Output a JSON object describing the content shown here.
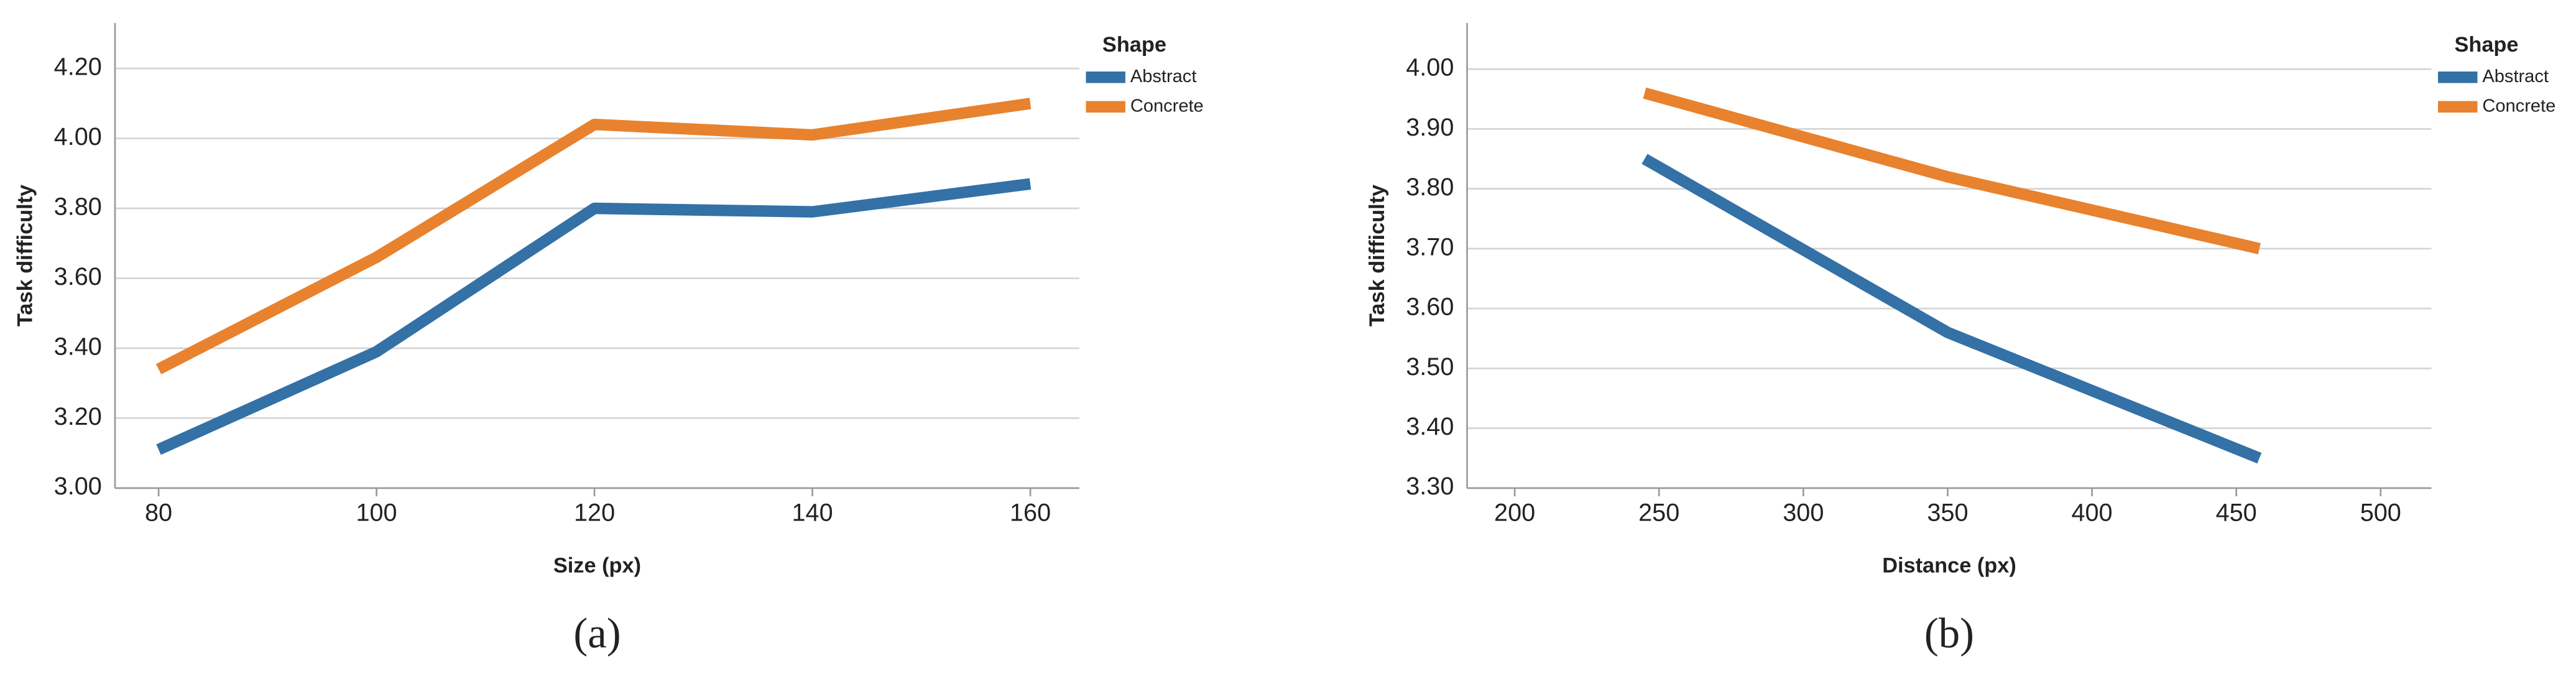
{
  "chart_data": [
    {
      "type": "line",
      "caption": "(a)",
      "xlabel": "Size (px)",
      "ylabel": "Task difficulty",
      "legend_title": "Shape",
      "legend": "right",
      "grid": true,
      "x": [
        80,
        100,
        120,
        140,
        160
      ],
      "xlim": [
        76,
        164.5
      ],
      "xticks": [
        80,
        100,
        120,
        140,
        160
      ],
      "ylim": [
        3.0,
        4.33
      ],
      "yticks": [
        {
          "value": 3.0,
          "label": "3.00"
        },
        {
          "value": 3.2,
          "label": "3.20"
        },
        {
          "value": 3.4,
          "label": "3.40"
        },
        {
          "value": 3.6,
          "label": "3.60"
        },
        {
          "value": 3.8,
          "label": "3.80"
        },
        {
          "value": 4.0,
          "label": "4.00"
        },
        {
          "value": 4.2,
          "label": "4.20"
        }
      ],
      "series": [
        {
          "name": "Abstract",
          "color": "#3371a6",
          "values": [
            3.11,
            3.39,
            3.8,
            3.79,
            3.87
          ]
        },
        {
          "name": "Concrete",
          "color": "#e8822e",
          "values": [
            3.34,
            3.66,
            4.04,
            4.01,
            4.1
          ]
        }
      ]
    },
    {
      "type": "line",
      "caption": "(b)",
      "xlabel": "Distance (px)",
      "ylabel": "Task difficulty",
      "legend_title": "Shape",
      "legend": "right",
      "grid": true,
      "x": [
        245,
        350,
        458
      ],
      "xlim": [
        183.5,
        517.6
      ],
      "xticks": [
        200,
        250,
        300,
        350,
        400,
        450,
        500
      ],
      "ylim": [
        3.3,
        4.077
      ],
      "yticks": [
        {
          "value": 3.3,
          "label": "3.30"
        },
        {
          "value": 3.4,
          "label": "3.40"
        },
        {
          "value": 3.5,
          "label": "3.50"
        },
        {
          "value": 3.6,
          "label": "3.60"
        },
        {
          "value": 3.7,
          "label": "3.70"
        },
        {
          "value": 3.8,
          "label": "3.80"
        },
        {
          "value": 3.9,
          "label": "3.90"
        },
        {
          "value": 4.0,
          "label": "4.00"
        }
      ],
      "series": [
        {
          "name": "Abstract",
          "color": "#3371a6",
          "values": [
            3.85,
            3.56,
            3.35
          ]
        },
        {
          "name": "Concrete",
          "color": "#e8822e",
          "values": [
            3.96,
            3.82,
            3.7
          ]
        }
      ]
    }
  ]
}
